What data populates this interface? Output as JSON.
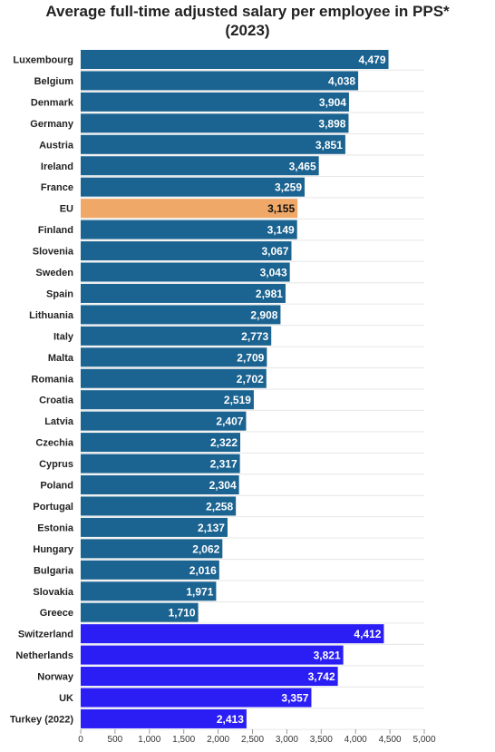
{
  "chart_data": {
    "type": "bar",
    "orientation": "horizontal",
    "title_lines": [
      "Average full-time adjusted salary per employee in PPS*",
      "(2023)"
    ],
    "categories": [
      "Luxembourg",
      "Belgium",
      "Denmark",
      "Germany",
      "Austria",
      "Ireland",
      "France",
      "EU",
      "Finland",
      "Slovenia",
      "Sweden",
      "Spain",
      "Lithuania",
      "Italy",
      "Malta",
      "Romania",
      "Croatia",
      "Latvia",
      "Czechia",
      "Cyprus",
      "Poland",
      "Portugal",
      "Estonia",
      "Hungary",
      "Bulgaria",
      "Slovakia",
      "Greece",
      "Switzerland",
      "Netherlands",
      "Norway",
      "UK",
      "Turkey (2022)"
    ],
    "values": [
      4479,
      4038,
      3904,
      3898,
      3851,
      3465,
      3259,
      3155,
      3149,
      3067,
      3043,
      2981,
      2908,
      2773,
      2709,
      2702,
      2519,
      2407,
      2322,
      2317,
      2304,
      2258,
      2137,
      2062,
      2016,
      1971,
      1710,
      4412,
      3821,
      3742,
      3357,
      2413
    ],
    "value_labels": [
      "4,479",
      "4,038",
      "3,904",
      "3,898",
      "3,851",
      "3,465",
      "3,259",
      "3,155",
      "3,149",
      "3,067",
      "3,043",
      "2,981",
      "2,908",
      "2,773",
      "2,709",
      "2,702",
      "2,519",
      "2,407",
      "2,322",
      "2,317",
      "2,304",
      "2,258",
      "2,137",
      "2,062",
      "2,016",
      "1,971",
      "1,710",
      "4,412",
      "3,821",
      "3,742",
      "3,357",
      "2,413"
    ],
    "groups": [
      "eu-member",
      "eu-member",
      "eu-member",
      "eu-member",
      "eu-member",
      "eu-member",
      "eu-member",
      "eu-aggregate",
      "eu-member",
      "eu-member",
      "eu-member",
      "eu-member",
      "eu-member",
      "eu-member",
      "eu-member",
      "eu-member",
      "eu-member",
      "eu-member",
      "eu-member",
      "eu-member",
      "eu-member",
      "eu-member",
      "eu-member",
      "eu-member",
      "eu-member",
      "eu-member",
      "eu-member",
      "non-eu",
      "non-eu",
      "non-eu",
      "non-eu",
      "non-eu"
    ],
    "colors": {
      "eu-member": "#1b6390",
      "eu-aggregate": "#f0a868",
      "non-eu": "#2a1ef5",
      "value_text": "#ffffff",
      "value_text_eu": "#111111",
      "grid": "#e6e6e6"
    },
    "xlim": [
      0,
      5000
    ],
    "xticks": [
      0,
      500,
      1000,
      1500,
      2000,
      2500,
      3000,
      3500,
      4000,
      4500,
      5000
    ],
    "xtick_labels": [
      "0",
      "500",
      "1,000",
      "1,500",
      "2,000",
      "2,500",
      "3,000",
      "3,500",
      "4,000",
      "4,500",
      "5,000"
    ],
    "grid": true,
    "legend": "none"
  }
}
